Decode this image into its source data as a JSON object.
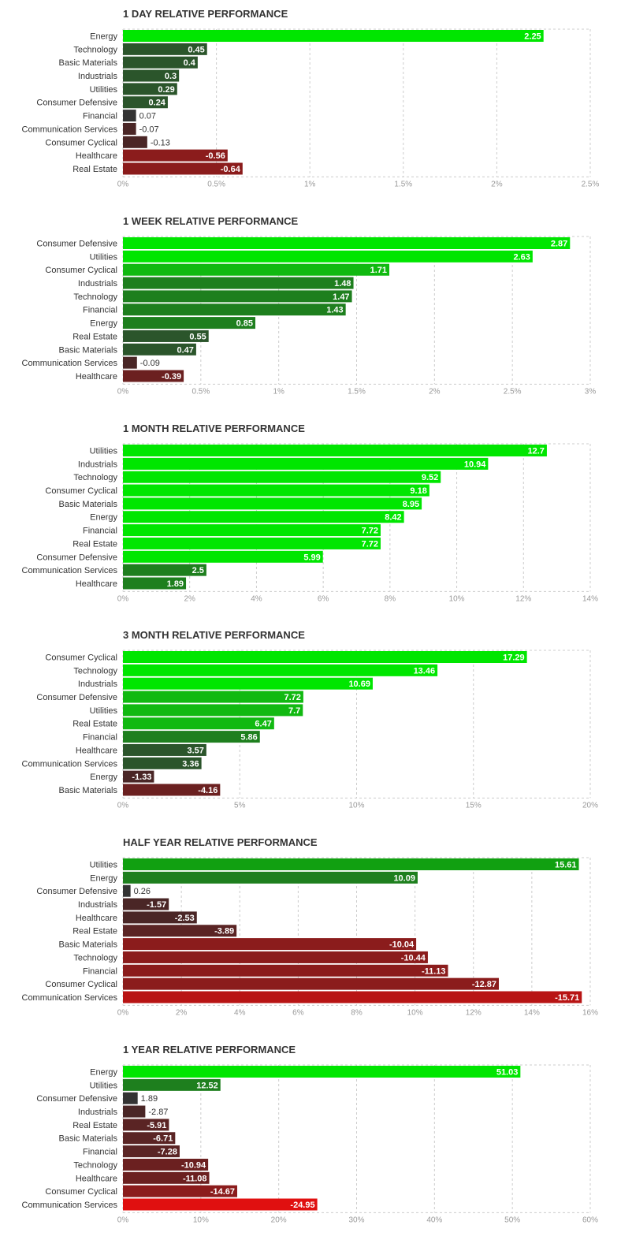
{
  "colors": {
    "pos_strong": "#00e600",
    "pos_mid1": "#11b911",
    "pos_mid2": "#1e7f1e",
    "pos_weak": "#2b552b",
    "neutral": "#333333",
    "neg_weak": "#4a2626",
    "neg_mid": "#6b2020",
    "neg_mid2": "#8b1c1c",
    "neg_strong": "#e01010",
    "grid": "#cccccc",
    "label": "#333333",
    "tick": "#999999"
  },
  "chart_data": [
    {
      "type": "bar",
      "orientation": "horizontal",
      "title": "1 DAY RELATIVE PERFORMANCE",
      "categories": [
        "Energy",
        "Technology",
        "Basic Materials",
        "Industrials",
        "Utilities",
        "Consumer Defensive",
        "Financial",
        "Communication Services",
        "Consumer Cyclical",
        "Healthcare",
        "Real Estate"
      ],
      "values": [
        2.25,
        0.45,
        0.4,
        0.3,
        0.29,
        0.24,
        0.07,
        -0.07,
        -0.13,
        -0.56,
        -0.64
      ],
      "value_labels": [
        "2.25",
        "0.45",
        "0.4",
        "0.3",
        "0.29",
        "0.24",
        "0.07",
        "-0.07",
        "-0.13",
        "-0.56",
        "-0.64"
      ],
      "bar_colors": [
        "#00e600",
        "#2b552b",
        "#2b552b",
        "#2b552b",
        "#2b552b",
        "#2b552b",
        "#333333",
        "#4a2626",
        "#4a2626",
        "#8b1c1c",
        "#8b1c1c"
      ],
      "xticks": [
        "0%",
        "0.5%",
        "1%",
        "1.5%",
        "2%",
        "2.5%"
      ],
      "xlim": [
        0,
        2.5
      ],
      "grid": true
    },
    {
      "type": "bar",
      "orientation": "horizontal",
      "title": "1 WEEK RELATIVE PERFORMANCE",
      "categories": [
        "Consumer Defensive",
        "Utilities",
        "Consumer Cyclical",
        "Industrials",
        "Technology",
        "Financial",
        "Energy",
        "Real Estate",
        "Basic Materials",
        "Communication Services",
        "Healthcare"
      ],
      "values": [
        2.87,
        2.63,
        1.71,
        1.48,
        1.47,
        1.43,
        0.85,
        0.55,
        0.47,
        -0.09,
        -0.39
      ],
      "value_labels": [
        "2.87",
        "2.63",
        "1.71",
        "1.48",
        "1.47",
        "1.43",
        "0.85",
        "0.55",
        "0.47",
        "-0.09",
        "-0.39"
      ],
      "bar_colors": [
        "#00e600",
        "#00e600",
        "#11b911",
        "#1e7f1e",
        "#1e7f1e",
        "#1e7f1e",
        "#1e7f1e",
        "#2b552b",
        "#2b552b",
        "#4a2626",
        "#6b2020"
      ],
      "xticks": [
        "0%",
        "0.5%",
        "1%",
        "1.5%",
        "2%",
        "2.5%",
        "3%"
      ],
      "xlim": [
        0,
        3
      ],
      "grid": true
    },
    {
      "type": "bar",
      "orientation": "horizontal",
      "title": "1 MONTH RELATIVE PERFORMANCE",
      "categories": [
        "Utilities",
        "Industrials",
        "Technology",
        "Consumer Cyclical",
        "Basic Materials",
        "Energy",
        "Financial",
        "Real Estate",
        "Consumer Defensive",
        "Communication Services",
        "Healthcare"
      ],
      "values": [
        12.7,
        10.94,
        9.52,
        9.18,
        8.95,
        8.42,
        7.72,
        7.72,
        5.99,
        2.5,
        1.89
      ],
      "value_labels": [
        "12.7",
        "10.94",
        "9.52",
        "9.18",
        "8.95",
        "8.42",
        "7.72",
        "7.72",
        "5.99",
        "2.5",
        "1.89"
      ],
      "bar_colors": [
        "#00e600",
        "#00e600",
        "#00e600",
        "#00e600",
        "#00e600",
        "#00e600",
        "#00e600",
        "#00e600",
        "#00e600",
        "#1e7f1e",
        "#1e7f1e"
      ],
      "xticks": [
        "0%",
        "2%",
        "4%",
        "6%",
        "8%",
        "10%",
        "12%",
        "14%"
      ],
      "xlim": [
        0,
        14
      ],
      "grid": true
    },
    {
      "type": "bar",
      "orientation": "horizontal",
      "title": "3 MONTH RELATIVE PERFORMANCE",
      "categories": [
        "Consumer Cyclical",
        "Technology",
        "Industrials",
        "Consumer Defensive",
        "Utilities",
        "Real Estate",
        "Financial",
        "Healthcare",
        "Communication Services",
        "Energy",
        "Basic Materials"
      ],
      "values": [
        17.29,
        13.46,
        10.69,
        7.72,
        7.7,
        6.47,
        5.86,
        3.57,
        3.36,
        -1.33,
        -4.16
      ],
      "value_labels": [
        "17.29",
        "13.46",
        "10.69",
        "7.72",
        "7.7",
        "6.47",
        "5.86",
        "3.57",
        "3.36",
        "-1.33",
        "-4.16"
      ],
      "bar_colors": [
        "#00e600",
        "#00e600",
        "#00e600",
        "#11b911",
        "#11b911",
        "#11b911",
        "#1e7f1e",
        "#2b552b",
        "#2b552b",
        "#4a2626",
        "#6b2020"
      ],
      "xticks": [
        "0%",
        "5%",
        "10%",
        "15%",
        "20%"
      ],
      "xlim": [
        0,
        20
      ],
      "grid": true
    },
    {
      "type": "bar",
      "orientation": "horizontal",
      "title": "HALF YEAR RELATIVE PERFORMANCE",
      "categories": [
        "Utilities",
        "Energy",
        "Consumer Defensive",
        "Industrials",
        "Healthcare",
        "Real Estate",
        "Basic Materials",
        "Technology",
        "Financial",
        "Consumer Cyclical",
        "Communication Services"
      ],
      "values": [
        15.61,
        10.09,
        0.26,
        -1.57,
        -2.53,
        -3.89,
        -10.04,
        -10.44,
        -11.13,
        -12.87,
        -15.71
      ],
      "value_labels": [
        "15.61",
        "10.09",
        "0.26",
        "-1.57",
        "-2.53",
        "-3.89",
        "-10.04",
        "-10.44",
        "-11.13",
        "-12.87",
        "-15.71"
      ],
      "bar_colors": [
        "#11a011",
        "#1e7f1e",
        "#333333",
        "#4a2626",
        "#4a2626",
        "#5a2424",
        "#8b1c1c",
        "#8b1c1c",
        "#8b1c1c",
        "#8b1c1c",
        "#b81414"
      ],
      "xticks": [
        "0%",
        "2%",
        "4%",
        "6%",
        "8%",
        "10%",
        "12%",
        "14%",
        "16%"
      ],
      "xlim": [
        0,
        16
      ],
      "grid": true
    },
    {
      "type": "bar",
      "orientation": "horizontal",
      "title": "1 YEAR RELATIVE PERFORMANCE",
      "categories": [
        "Energy",
        "Utilities",
        "Consumer Defensive",
        "Industrials",
        "Real Estate",
        "Basic Materials",
        "Financial",
        "Technology",
        "Healthcare",
        "Consumer Cyclical",
        "Communication Services"
      ],
      "values": [
        51.03,
        12.52,
        1.89,
        -2.87,
        -5.91,
        -6.71,
        -7.28,
        -10.94,
        -11.08,
        -14.67,
        -24.95
      ],
      "value_labels": [
        "51.03",
        "12.52",
        "1.89",
        "-2.87",
        "-5.91",
        "-6.71",
        "-7.28",
        "-10.94",
        "-11.08",
        "-14.67",
        "-24.95"
      ],
      "bar_colors": [
        "#00e600",
        "#1e7f1e",
        "#333333",
        "#4a2626",
        "#5a2424",
        "#5a2424",
        "#5a2424",
        "#6b2020",
        "#6b2020",
        "#8b1c1c",
        "#e01010"
      ],
      "xticks": [
        "0%",
        "10%",
        "20%",
        "30%",
        "40%",
        "50%",
        "60%"
      ],
      "xlim": [
        0,
        60
      ],
      "grid": true
    }
  ]
}
